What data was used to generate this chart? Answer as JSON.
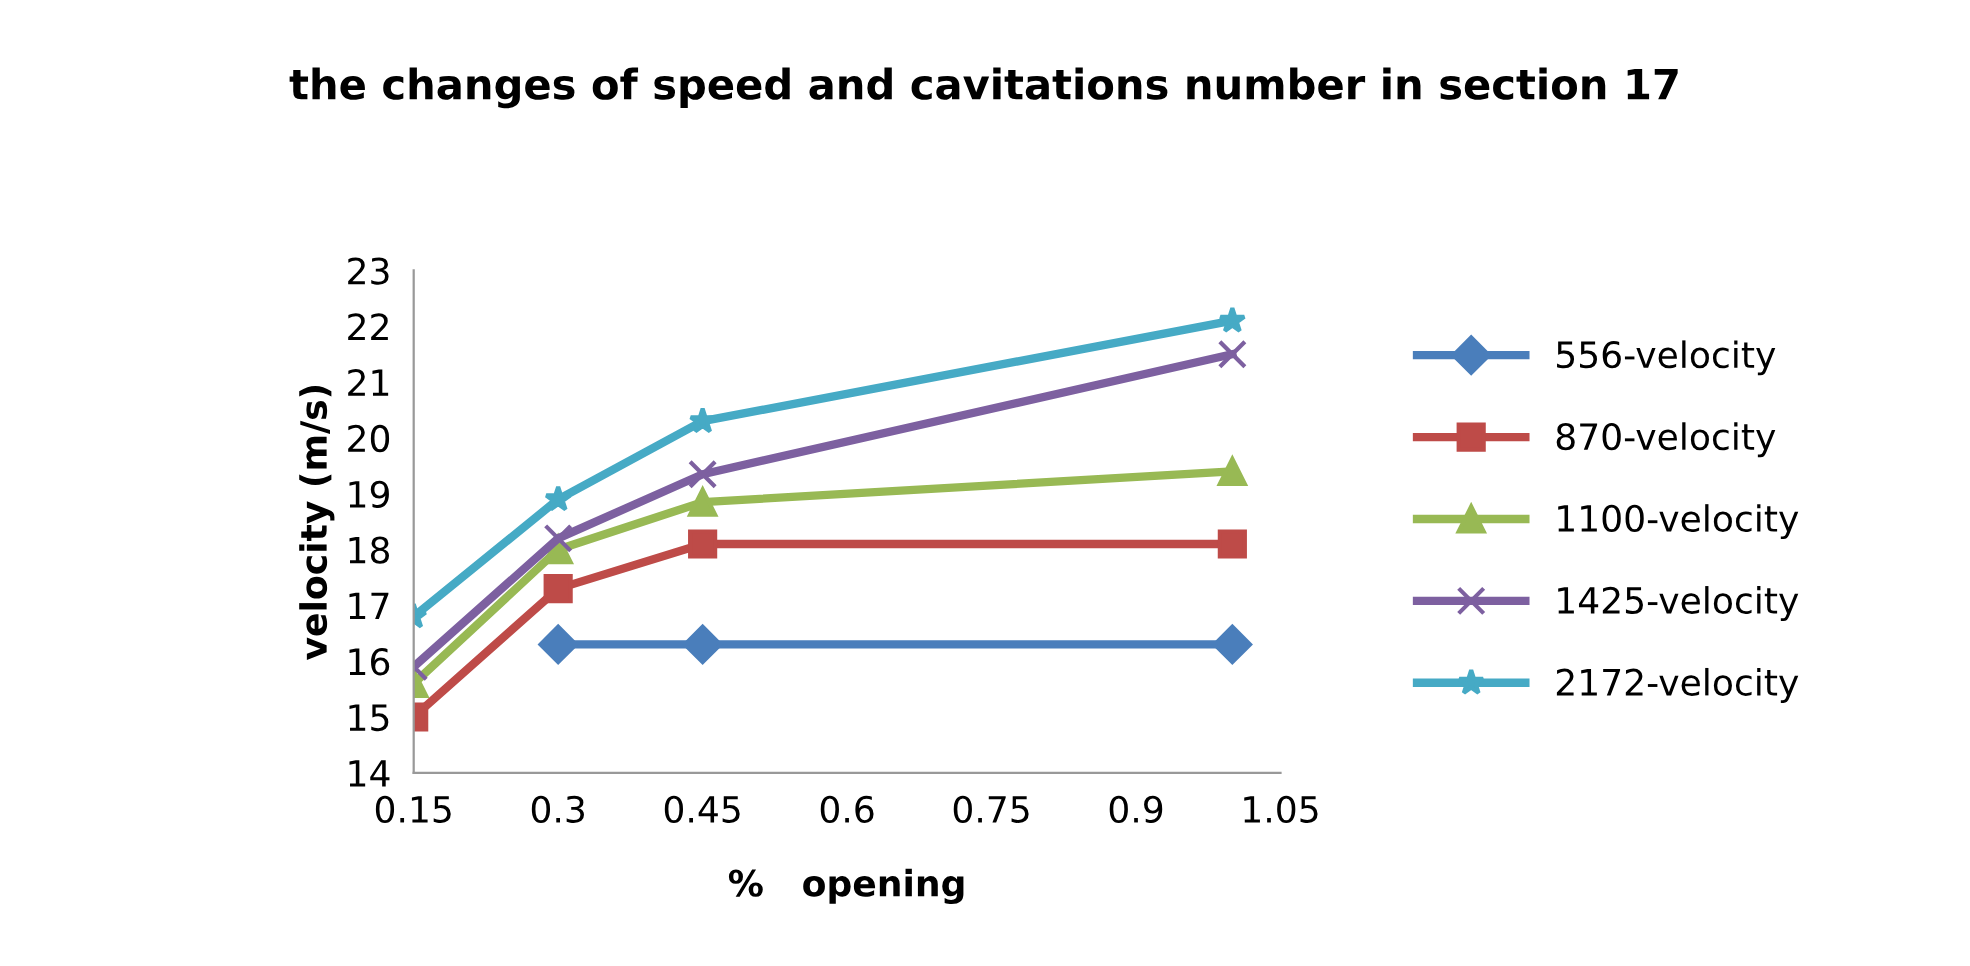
{
  "chart_data": {
    "type": "line",
    "title": "the changes of speed and cavitations number in section 17",
    "xlabel": "%   opening",
    "ylabel": "velocity (m/s)",
    "xlim": [
      0.15,
      1.05
    ],
    "xticks": [
      0.15,
      0.3,
      0.45,
      0.6,
      0.75,
      0.9,
      1.05
    ],
    "ylim": [
      14,
      23
    ],
    "yticks": [
      14,
      15,
      16,
      17,
      18,
      19,
      20,
      21,
      22,
      23
    ],
    "grid": false,
    "legend": "right",
    "line_style": "solid",
    "series": [
      {
        "name": "556-velocity",
        "color": "#4a7ebb",
        "marker": "diamond",
        "x": [
          0.3,
          0.45,
          1.0
        ],
        "values": [
          16.3,
          16.3,
          16.3
        ]
      },
      {
        "name": "870-velocity",
        "color": "#be4b48",
        "marker": "square",
        "x": [
          0.15,
          0.3,
          0.45,
          1.0
        ],
        "values": [
          15.0,
          17.3,
          18.1,
          18.1
        ]
      },
      {
        "name": "1100-velocity",
        "color": "#98b954",
        "marker": "triangle",
        "x": [
          0.15,
          0.3,
          0.45,
          1.0
        ],
        "values": [
          15.6,
          18.0,
          18.85,
          19.4
        ]
      },
      {
        "name": "1425-velocity",
        "color": "#7d60a0",
        "marker": "cross",
        "x": [
          0.15,
          0.3,
          0.45,
          1.0
        ],
        "values": [
          15.9,
          18.2,
          19.35,
          21.5
        ]
      },
      {
        "name": "2172-velocity",
        "color": "#46aac5",
        "marker": "star",
        "x": [
          0.15,
          0.3,
          0.45,
          1.0
        ],
        "values": [
          16.8,
          18.9,
          20.3,
          22.1
        ]
      }
    ]
  }
}
